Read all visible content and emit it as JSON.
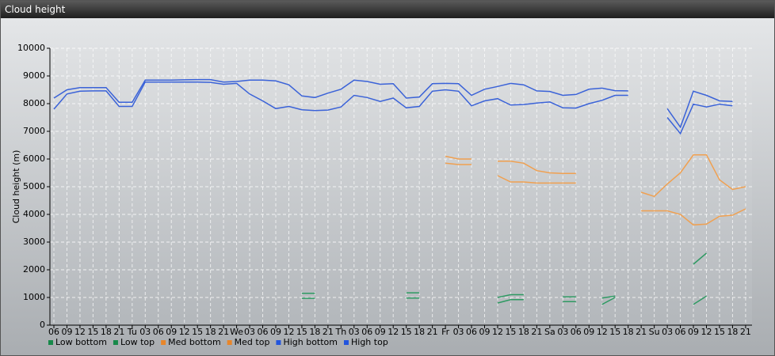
{
  "chart_data": {
    "type": "line",
    "title": "Cloud height",
    "y_label": "Cloud height (m)",
    "categories": [
      "06",
      "09",
      "12",
      "15",
      "18",
      "21",
      "Tu",
      "03",
      "06",
      "09",
      "12",
      "15",
      "18",
      "21",
      "We",
      "03",
      "06",
      "09",
      "12",
      "15",
      "18",
      "21",
      "Th",
      "03",
      "06",
      "09",
      "12",
      "15",
      "18",
      "21",
      "Fr",
      "03",
      "06",
      "09",
      "12",
      "15",
      "18",
      "21",
      "Sa",
      "03",
      "06",
      "09",
      "12",
      "15",
      "18",
      "21",
      "Su",
      "03",
      "06",
      "09",
      "12",
      "15",
      "18",
      "21"
    ],
    "series": [
      {
        "name": "Low bottom",
        "color": "#2e9a62",
        "legend_color": "#17894a",
        "values": [
          null,
          null,
          null,
          null,
          null,
          null,
          null,
          null,
          null,
          null,
          null,
          null,
          null,
          null,
          null,
          null,
          null,
          null,
          null,
          970,
          970,
          null,
          null,
          null,
          null,
          null,
          null,
          980,
          980,
          null,
          null,
          null,
          null,
          null,
          800,
          920,
          920,
          null,
          null,
          850,
          850,
          null,
          750,
          1000,
          null,
          null,
          null,
          null,
          null,
          750,
          1050,
          null,
          null,
          null
        ]
      },
      {
        "name": "Low top",
        "color": "#2e9a62",
        "legend_color": "#17894a",
        "values": [
          null,
          null,
          null,
          null,
          null,
          null,
          null,
          null,
          null,
          null,
          null,
          null,
          null,
          null,
          null,
          null,
          null,
          null,
          null,
          1150,
          1150,
          null,
          null,
          null,
          null,
          null,
          null,
          1170,
          1170,
          null,
          null,
          null,
          null,
          null,
          1000,
          1100,
          1100,
          null,
          null,
          1020,
          1020,
          null,
          980,
          1050,
          null,
          null,
          null,
          null,
          null,
          2200,
          2600,
          null,
          null,
          null
        ]
      },
      {
        "name": "Med bottom",
        "color": "#f0a050",
        "legend_color": "#e8862a",
        "values": [
          null,
          null,
          null,
          null,
          null,
          null,
          null,
          null,
          null,
          null,
          null,
          null,
          null,
          null,
          null,
          null,
          null,
          null,
          null,
          null,
          null,
          null,
          null,
          null,
          null,
          null,
          null,
          null,
          null,
          null,
          5850,
          5800,
          5800,
          null,
          5400,
          5170,
          5170,
          5130,
          5130,
          5130,
          5130,
          null,
          null,
          null,
          null,
          4130,
          4130,
          4130,
          4000,
          3620,
          3650,
          3930,
          3970,
          4200
        ]
      },
      {
        "name": "Med top",
        "color": "#f0a050",
        "legend_color": "#e8862a",
        "values": [
          null,
          null,
          null,
          null,
          null,
          null,
          null,
          null,
          null,
          null,
          null,
          null,
          null,
          null,
          null,
          null,
          null,
          null,
          null,
          null,
          null,
          null,
          null,
          null,
          null,
          null,
          null,
          null,
          null,
          null,
          6100,
          6000,
          6000,
          null,
          5920,
          5920,
          5850,
          5580,
          5500,
          5480,
          5480,
          null,
          null,
          null,
          null,
          4800,
          4650,
          5100,
          5500,
          6150,
          6150,
          5250,
          4900,
          5000
        ]
      },
      {
        "name": "High bottom",
        "color": "#3a62d8",
        "legend_color": "#2255dd",
        "values": [
          7800,
          8350,
          8450,
          8460,
          8460,
          7900,
          7900,
          8780,
          8780,
          8780,
          8780,
          8780,
          8770,
          8700,
          8730,
          8350,
          8100,
          7820,
          7900,
          7780,
          7750,
          7770,
          7880,
          8300,
          8220,
          8080,
          8200,
          7850,
          7900,
          8450,
          8500,
          8450,
          7920,
          8100,
          8180,
          7950,
          7970,
          8020,
          8060,
          7850,
          7840,
          8000,
          8120,
          8300,
          8300,
          null,
          null,
          7500,
          6920,
          7980,
          7880,
          7980,
          7920,
          null
        ]
      },
      {
        "name": "High top",
        "color": "#3a62d8",
        "legend_color": "#2255dd",
        "values": [
          8200,
          8500,
          8580,
          8580,
          8580,
          8050,
          8050,
          8850,
          8850,
          8850,
          8860,
          8870,
          8870,
          8780,
          8800,
          8850,
          8850,
          8820,
          8680,
          8280,
          8220,
          8380,
          8520,
          8850,
          8800,
          8700,
          8720,
          8200,
          8240,
          8720,
          8730,
          8720,
          8300,
          8520,
          8620,
          8730,
          8680,
          8460,
          8440,
          8300,
          8330,
          8520,
          8560,
          8470,
          8460,
          null,
          null,
          7820,
          7150,
          8450,
          8300,
          8100,
          8080,
          null
        ]
      }
    ],
    "ylim": [
      0,
      10000
    ],
    "yticks": [
      0,
      1000,
      2000,
      3000,
      4000,
      5000,
      6000,
      7000,
      8000,
      9000,
      10000
    ],
    "grid": true,
    "legend": "bottom-left"
  }
}
